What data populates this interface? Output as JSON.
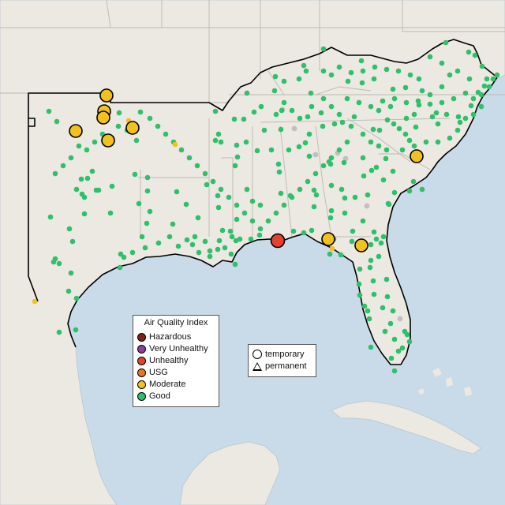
{
  "legend": {
    "title": "Air Quality Index",
    "categories": [
      {
        "label": "Hazardous",
        "color": "#7e2318"
      },
      {
        "label": "Very Unhealthy",
        "color": "#8b3fa0"
      },
      {
        "label": "Unhealthy",
        "color": "#e5412f"
      },
      {
        "label": "USG",
        "color": "#e87520"
      },
      {
        "label": "Moderate",
        "color": "#f2c11d"
      },
      {
        "label": "Good",
        "color": "#2fc06b"
      }
    ]
  },
  "monitor_types": {
    "temporary": "temporary",
    "permanent": "permanent"
  },
  "colors": {
    "ocean": "#c9dbe9",
    "land": "#ece8e2",
    "state_border": "#b8b4ae",
    "region_outline": "#000000",
    "inactive_monitor": "#c0c0c0"
  },
  "monitors": {
    "category_index": [
      "Good",
      "Moderate",
      "Unhealthy"
    ],
    "good_count": 310,
    "moderate_count": 12,
    "unhealthy_count": 1
  }
}
